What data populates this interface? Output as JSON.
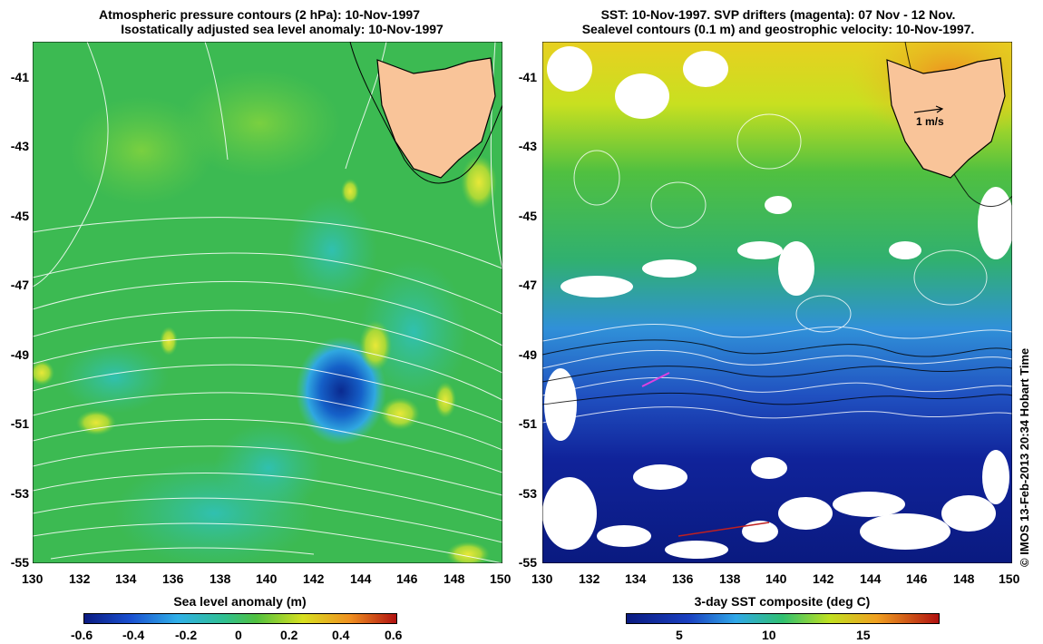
{
  "left_panel": {
    "title_line1": "Atmospheric pressure contours (2 hPa): 10-Nov-1997",
    "title_line2": "Isostatically adjusted sea level anomaly: 10-Nov-1997",
    "colorbar_label": "Sea level anomaly (m)",
    "colorbar_ticks": [
      "-0.6",
      "-0.4",
      "-0.2",
      "0",
      "0.2",
      "0.4",
      "0.6"
    ]
  },
  "right_panel": {
    "title_line1": "SST: 10-Nov-1997. SVP drifters (magenta): 07 Nov - 12 Nov.",
    "title_line2": "Sealevel contours (0.1 m) and geostrophic velocity: 10-Nov-1997.",
    "velocity_scale_label": "1 m/s",
    "colorbar_label": "3-day SST composite (deg C)",
    "colorbar_ticks": [
      "5",
      "10",
      "15"
    ]
  },
  "axes": {
    "x_ticks": [
      "130",
      "132",
      "134",
      "136",
      "138",
      "140",
      "142",
      "144",
      "146",
      "148",
      "150"
    ],
    "y_ticks": [
      "-41",
      "-43",
      "-45",
      "-47",
      "-49",
      "-51",
      "-53",
      "-55"
    ]
  },
  "credit": "© IMOS 13-Feb-2013 20:34 Hobart Time",
  "colors": {
    "land": "#f9c499",
    "ocean_mid": "#3cb84b",
    "sla_low": "#1030a0",
    "sst_cold": "#0a1a80",
    "sst_warm": "#f08a20"
  }
}
